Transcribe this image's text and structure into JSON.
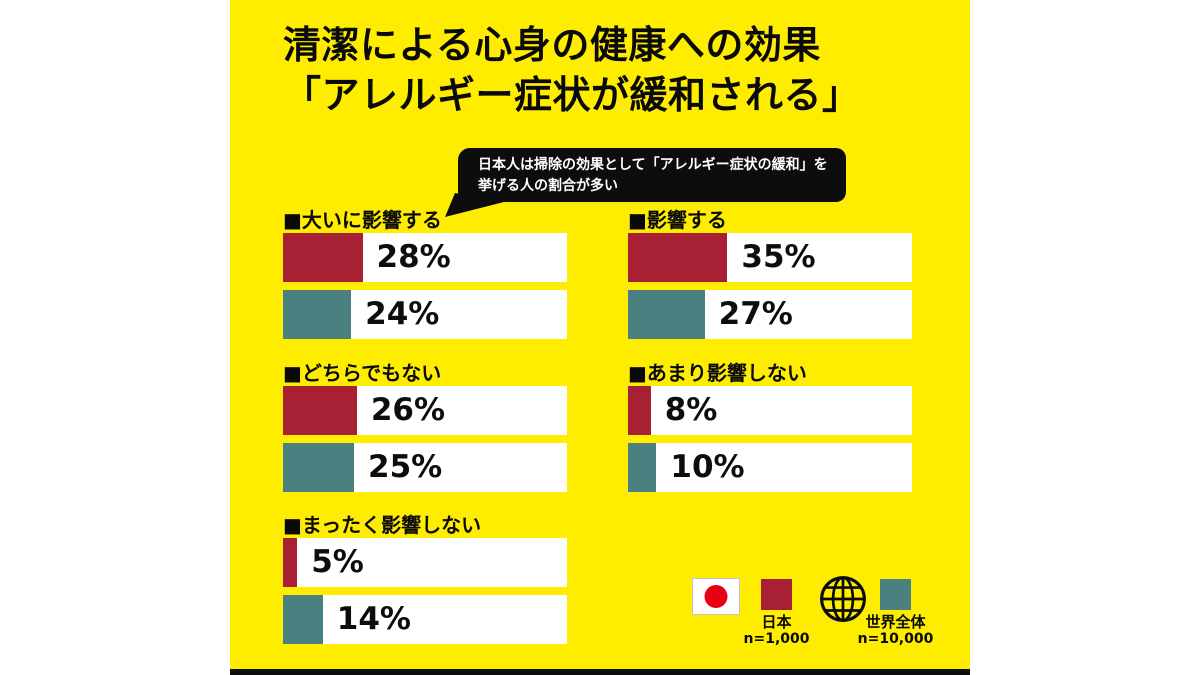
{
  "title": {
    "line1": "清潔による心身の健康への効果",
    "line2": "「アレルギー症状が緩和される」"
  },
  "callout": {
    "line1": "日本人は掃除の効果として「アレルギー症状の緩和」を",
    "line2": "挙げる人の割合が多い"
  },
  "labels": {
    "prefix": "■"
  },
  "chart_data": {
    "type": "bar",
    "orientation": "horizontal",
    "categories": [
      "大いに影響する",
      "影響する",
      "どちらでもない",
      "あまり影響しない",
      "まったく影響しない"
    ],
    "series": [
      {
        "name": "日本",
        "n": "n=1,000",
        "color": "#a72033",
        "values": [
          28,
          35,
          26,
          8,
          5
        ]
      },
      {
        "name": "世界全体",
        "n": "n=10,000",
        "color": "#4a8180",
        "values": [
          24,
          27,
          25,
          10,
          14
        ]
      }
    ],
    "unit": "%",
    "xlim": [
      0,
      100
    ],
    "grid": false,
    "legend_position": "bottom-right"
  },
  "legend": {
    "japan": {
      "label": "日本",
      "n": "n=1,000"
    },
    "world": {
      "label": "世界全体",
      "n": "n=10,000"
    }
  },
  "colors": {
    "background": "#ffffff",
    "panel": "#ffed00",
    "japan": "#a72033",
    "world": "#4a8180",
    "callout_bg": "#0d0d0d",
    "flag_red": "#e60012",
    "text": "#0a0a0a"
  }
}
